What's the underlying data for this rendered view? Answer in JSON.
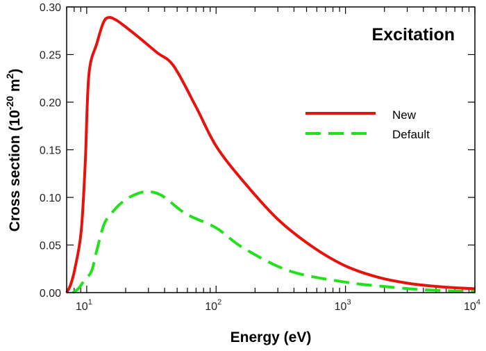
{
  "chart_data": {
    "type": "line",
    "title": "Excitation",
    "xlabel": "Energy (eV)",
    "ylabel": "Cross section (10",
    "ylabel_parts": {
      "base": "Cross section (10",
      "exp1": "-20",
      "mid": " m",
      "exp2": "2",
      "end": ")"
    },
    "x_scale": "log",
    "xlim": [
      7,
      10000
    ],
    "ylim": [
      0,
      0.3
    ],
    "x_ticks": [
      {
        "base": "10",
        "exp": "1",
        "value": 10
      },
      {
        "base": "10",
        "exp": "2",
        "value": 100
      },
      {
        "base": "10",
        "exp": "3",
        "value": 1000
      },
      {
        "base": "10",
        "exp": "4",
        "value": 10000
      }
    ],
    "y_ticks": [
      "0.00",
      "0.05",
      "0.10",
      "0.15",
      "0.20",
      "0.25",
      "0.30"
    ],
    "grid": false,
    "legend_position": "right",
    "series": [
      {
        "name": "New",
        "color": "#e8120c",
        "style": "solid",
        "x": [
          7,
          7.5,
          8.1,
          9.06,
          9.75,
          10.4,
          12.0,
          13.5,
          14.9,
          17,
          20,
          25.3,
          35,
          47,
          70,
          100,
          162,
          300,
          558,
          1000,
          1800,
          3160,
          5600,
          10000
        ],
        "y": [
          0,
          0.008,
          0.025,
          0.064,
          0.137,
          0.229,
          0.262,
          0.284,
          0.289,
          0.286,
          0.279,
          0.268,
          0.252,
          0.238,
          0.195,
          0.154,
          0.117,
          0.077,
          0.048,
          0.028,
          0.016,
          0.0095,
          0.006,
          0.004
        ]
      },
      {
        "name": "Default",
        "color": "#22e01a",
        "style": "dashed",
        "x": [
          7.8,
          8.6,
          9.6,
          10.9,
          12.0,
          13.6,
          15.5,
          18.1,
          22,
          28.6,
          38,
          58,
          100,
          162,
          372,
          1000,
          1930,
          4000,
          10000
        ],
        "y": [
          0,
          0.004,
          0.013,
          0.0226,
          0.045,
          0.0715,
          0.083,
          0.093,
          0.101,
          0.106,
          0.102,
          0.083,
          0.068,
          0.047,
          0.0226,
          0.011,
          0.0066,
          0.003,
          0.001
        ]
      }
    ]
  }
}
